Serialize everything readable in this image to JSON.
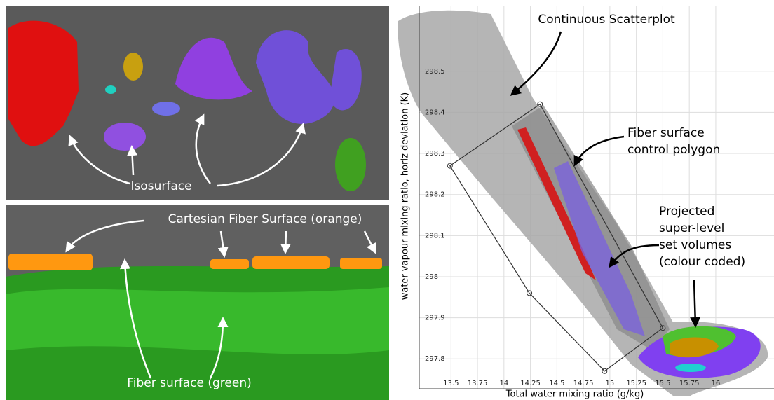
{
  "panels": {
    "isosurface_view": {
      "label": "Isosurface"
    },
    "fiber_view": {
      "labels": [
        "Cartesian Fiber Surface (orange)",
        "Fiber surface (green)"
      ]
    }
  },
  "chart_data": {
    "type": "scatter",
    "x_label": "Total water mixing ratio (g/kg)",
    "y_label": "water vapour mixing ratio, horiz deviation (K)",
    "xlim": [
      13.2,
      16.55
    ],
    "ylim": [
      297.727,
      298.66
    ],
    "xticks": [
      13.5,
      13.75,
      14,
      14.25,
      14.5,
      14.75,
      15,
      15.25,
      15.5,
      15.75,
      16
    ],
    "yticks": [
      297.8,
      297.9,
      298,
      298.1,
      298.2,
      298.3,
      298.4,
      298.5
    ],
    "grid": true,
    "control_polygon": {
      "x": [
        13.49,
        14.34,
        15.5,
        14.95,
        14.24
      ],
      "y": [
        298.27,
        298.42,
        297.875,
        297.77,
        297.96
      ],
      "color": "#333333"
    },
    "annotations": [
      {
        "lines": [
          "Continuous Scatterplot"
        ]
      },
      {
        "lines": [
          "Fiber surface",
          "control polygon"
        ]
      },
      {
        "lines": [
          "Projected",
          "super-level",
          "set volumes",
          "(colour coded)"
        ]
      }
    ]
  }
}
